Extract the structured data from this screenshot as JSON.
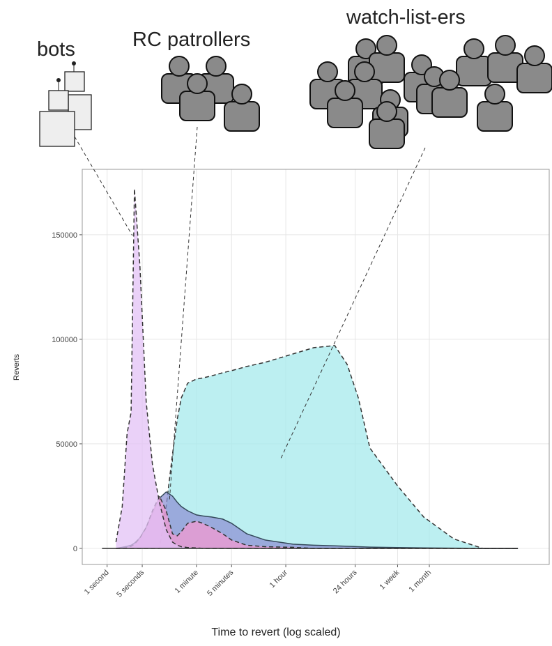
{
  "labels": {
    "bots": "bots",
    "patrollers": "RC patrollers",
    "watchers": "watch-list-ers"
  },
  "chart_data": {
    "type": "area",
    "xlabel": "Time to revert (log scaled)",
    "ylabel": "Reverts",
    "xscale": "log",
    "grid": true,
    "xlim": [
      0.32,
      630000000
    ],
    "ylim": [
      -7700,
      181300
    ],
    "xticks": [
      {
        "value": 1,
        "label": "1 second"
      },
      {
        "value": 5,
        "label": "5 seconds"
      },
      {
        "value": 60,
        "label": "1 minute"
      },
      {
        "value": 300,
        "label": "5 minutes"
      },
      {
        "value": 3600,
        "label": "1 hour"
      },
      {
        "value": 86400,
        "label": "24 hours"
      },
      {
        "value": 604800,
        "label": "1 week"
      },
      {
        "value": 2592000,
        "label": "1 month"
      }
    ],
    "yticks": [
      0,
      50000,
      100000,
      150000
    ],
    "x": [
      1.5,
      2,
      2.5,
      3,
      3.5,
      4.5,
      6,
      8,
      11,
      15,
      20,
      25,
      30,
      40,
      60,
      80,
      120,
      200,
      300,
      600,
      1400,
      5000,
      13000,
      34000,
      60000,
      100000,
      170000,
      600000,
      2000000,
      8000000,
      30000000,
      150000000
    ],
    "series": [
      {
        "color": "#a6e9ec",
        "stroke": "#333",
        "dashed": true,
        "values": [
          0,
          0,
          0,
          0,
          0,
          0,
          0,
          0,
          0,
          20000,
          45000,
          62000,
          72000,
          79000,
          81000,
          81500,
          82500,
          84000,
          85000,
          87000,
          89000,
          93000,
          96000,
          97000,
          88000,
          72000,
          48000,
          30000,
          15000,
          4500,
          0,
          0
        ]
      },
      {
        "color": "#8f93d4",
        "stroke": "#34495a",
        "dashed": false,
        "values": [
          0,
          500,
          1000,
          1500,
          2500,
          5000,
          10000,
          17000,
          24000,
          27000,
          25000,
          22000,
          20000,
          18000,
          16000,
          15500,
          15000,
          14000,
          12000,
          7000,
          4000,
          2000,
          1500,
          1200,
          1000,
          800,
          600,
          400,
          200,
          100,
          0,
          0
        ]
      },
      {
        "color": "#f29ad2",
        "stroke": "#333",
        "dashed": true,
        "values": [
          0,
          0,
          500,
          1000,
          2000,
          5000,
          10000,
          18000,
          25000,
          18000,
          7000,
          6000,
          8000,
          12000,
          13000,
          12000,
          10000,
          7000,
          4000,
          1500,
          800,
          500,
          0,
          0,
          0,
          0,
          0,
          0,
          0,
          0,
          0,
          0
        ]
      },
      {
        "color": "#e3c1f5",
        "stroke": "#333",
        "dashed": true,
        "values": [
          3000,
          20000,
          55000,
          65000,
          172000,
          135000,
          70000,
          40000,
          22000,
          9000,
          3000,
          1500,
          800,
          400,
          200,
          0,
          0,
          0,
          0,
          0,
          0,
          0,
          0,
          0,
          0,
          0,
          0,
          0,
          0,
          0,
          0,
          0
        ]
      }
    ]
  }
}
